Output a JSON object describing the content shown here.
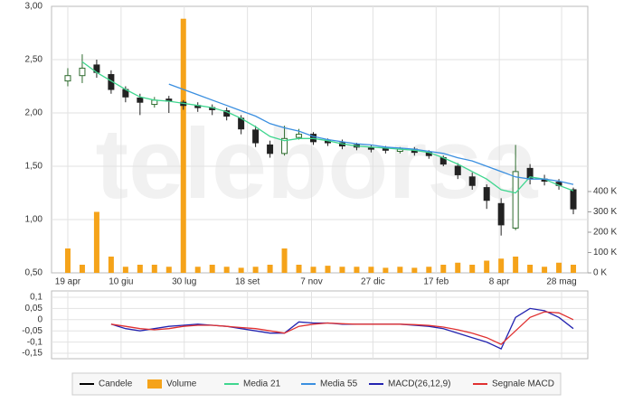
{
  "watermark": "teleborsa",
  "chart_data": [
    {
      "type": "candlestick",
      "x": [
        0,
        8,
        16,
        24,
        32,
        40,
        48,
        56,
        64,
        72,
        80,
        88,
        96,
        104,
        112,
        120,
        128,
        136,
        144,
        152,
        160,
        168,
        176,
        184,
        192,
        200,
        208,
        216,
        224,
        232,
        240,
        248,
        256,
        264,
        272,
        280
      ],
      "xlim": [
        -9,
        288
      ],
      "xticks": [
        {
          "value": 0,
          "label": "19 apr"
        },
        {
          "value": 29.5,
          "label": "10 giu"
        },
        {
          "value": 64.5,
          "label": "30 lug"
        },
        {
          "value": 99.5,
          "label": "18 set"
        },
        {
          "value": 135,
          "label": "7 nov"
        },
        {
          "value": 169,
          "label": "27 dic"
        },
        {
          "value": 204,
          "label": "17 feb"
        },
        {
          "value": 239,
          "label": "8 apr"
        },
        {
          "value": 273.5,
          "label": "28 mag"
        }
      ],
      "ylim": [
        0.5,
        3.0
      ],
      "yticks": [
        {
          "value": 0.5,
          "label": "0,50"
        },
        {
          "value": 1.0,
          "label": "1,00"
        },
        {
          "value": 1.5,
          "label": "1,50"
        },
        {
          "value": 2.0,
          "label": "2,00"
        },
        {
          "value": 2.5,
          "label": "2,50"
        },
        {
          "value": 3.0,
          "label": "3,00"
        }
      ],
      "y2lim": [
        0,
        1311000
      ],
      "y2ticks": [
        {
          "value": 0,
          "label": "0 K"
        },
        {
          "value": 100000,
          "label": "100 K"
        },
        {
          "value": 200000,
          "label": "200 K"
        },
        {
          "value": 300000,
          "label": "300 K"
        },
        {
          "value": 400000,
          "label": "400 K"
        }
      ],
      "grid": true,
      "candles": {
        "name": "Candele",
        "color": "#000000",
        "up_color": "#2e6b2e",
        "down_color": "#222222",
        "open": [
          2.3,
          2.35,
          2.45,
          2.36,
          2.22,
          2.14,
          2.08,
          2.13,
          2.1,
          2.07,
          2.05,
          2.02,
          1.95,
          1.84,
          1.7,
          1.62,
          1.77,
          1.8,
          1.74,
          1.72,
          1.7,
          1.67,
          1.67,
          1.64,
          1.66,
          1.63,
          1.58,
          1.5,
          1.4,
          1.3,
          1.15,
          0.92,
          1.48,
          1.38,
          1.35,
          1.28
        ],
        "high": [
          2.42,
          2.55,
          2.5,
          2.4,
          2.25,
          2.18,
          2.15,
          2.16,
          2.12,
          2.1,
          2.08,
          2.05,
          1.98,
          1.88,
          1.74,
          1.88,
          1.85,
          1.82,
          1.76,
          1.75,
          1.72,
          1.7,
          1.69,
          1.68,
          1.68,
          1.65,
          1.6,
          1.53,
          1.44,
          1.33,
          1.2,
          1.7,
          1.52,
          1.42,
          1.38,
          1.3
        ],
        "low": [
          2.25,
          2.28,
          2.33,
          2.18,
          2.1,
          1.98,
          2.05,
          2.0,
          2.03,
          2.01,
          1.98,
          1.93,
          1.8,
          1.68,
          1.58,
          1.6,
          1.75,
          1.7,
          1.69,
          1.66,
          1.65,
          1.63,
          1.62,
          1.62,
          1.6,
          1.57,
          1.5,
          1.38,
          1.28,
          1.1,
          0.85,
          0.9,
          1.33,
          1.32,
          1.28,
          1.05
        ],
        "close": [
          2.35,
          2.42,
          2.38,
          2.22,
          2.15,
          2.1,
          2.12,
          2.11,
          2.07,
          2.05,
          2.03,
          1.97,
          1.85,
          1.72,
          1.62,
          1.76,
          1.8,
          1.73,
          1.72,
          1.69,
          1.68,
          1.66,
          1.65,
          1.66,
          1.63,
          1.6,
          1.52,
          1.42,
          1.32,
          1.18,
          0.95,
          1.45,
          1.38,
          1.36,
          1.32,
          1.1
        ]
      },
      "series": [
        {
          "name": "Volume",
          "color": "#f5a31a",
          "axis": "y2",
          "values": [
            120000,
            40000,
            300000,
            80000,
            30000,
            40000,
            40000,
            30000,
            1250000,
            30000,
            40000,
            30000,
            25000,
            30000,
            40000,
            120000,
            40000,
            30000,
            35000,
            30000,
            30000,
            30000,
            25000,
            30000,
            25000,
            30000,
            40000,
            50000,
            40000,
            60000,
            70000,
            80000,
            40000,
            30000,
            50000,
            40000
          ]
        },
        {
          "name": "Media 21",
          "color": "#3fd68f",
          "values": [
            null,
            2.48,
            2.38,
            2.3,
            2.22,
            2.15,
            2.12,
            2.11,
            2.09,
            2.07,
            2.05,
            2.01,
            1.95,
            1.87,
            1.78,
            1.74,
            1.76,
            1.76,
            1.74,
            1.71,
            1.69,
            1.68,
            1.67,
            1.66,
            1.65,
            1.63,
            1.58,
            1.52,
            1.45,
            1.38,
            1.28,
            1.25,
            1.4,
            1.38,
            1.32,
            1.27
          ]
        },
        {
          "name": "Media 55",
          "color": "#3a8fe0",
          "values": [
            null,
            null,
            null,
            null,
            null,
            null,
            null,
            2.27,
            2.22,
            2.17,
            2.12,
            2.07,
            2.02,
            1.97,
            1.9,
            1.86,
            1.83,
            1.78,
            1.75,
            1.73,
            1.71,
            1.7,
            1.68,
            1.67,
            1.66,
            1.64,
            1.62,
            1.58,
            1.55,
            1.5,
            1.45,
            1.4,
            1.38,
            1.38,
            1.36,
            1.33
          ]
        }
      ]
    },
    {
      "type": "line",
      "x": [
        0,
        8,
        16,
        24,
        32,
        40,
        48,
        56,
        64,
        72,
        80,
        88,
        96,
        104,
        112,
        120,
        128,
        136,
        144,
        152,
        160,
        168,
        176,
        184,
        192,
        200,
        208,
        216,
        224,
        232,
        240,
        248,
        256,
        264,
        272,
        280
      ],
      "ylim": [
        -0.174,
        0.128
      ],
      "yticks": [
        {
          "value": -0.15,
          "label": "-0,15"
        },
        {
          "value": -0.1,
          "label": "-0,1"
        },
        {
          "value": -0.05,
          "label": "-0,05"
        },
        0,
        {
          "value": 0.05,
          "label": "0,05"
        },
        {
          "value": 0.1,
          "label": "0,1"
        }
      ],
      "series": [
        {
          "name": "MACD(26,12,9)",
          "color": "#2424b0",
          "values": [
            null,
            null,
            null,
            -0.02,
            -0.04,
            -0.05,
            -0.04,
            -0.03,
            -0.025,
            -0.02,
            -0.025,
            -0.03,
            -0.04,
            -0.05,
            -0.06,
            -0.06,
            -0.01,
            -0.015,
            -0.015,
            -0.02,
            -0.02,
            -0.02,
            -0.02,
            -0.02,
            -0.025,
            -0.03,
            -0.04,
            -0.06,
            -0.08,
            -0.1,
            -0.13,
            0.01,
            0.05,
            0.04,
            0.01,
            -0.04
          ]
        },
        {
          "name": "Segnale MACD",
          "color": "#e03030",
          "values": [
            null,
            null,
            null,
            -0.02,
            -0.03,
            -0.04,
            -0.045,
            -0.04,
            -0.03,
            -0.025,
            -0.025,
            -0.03,
            -0.035,
            -0.04,
            -0.05,
            -0.06,
            -0.03,
            -0.02,
            -0.015,
            -0.018,
            -0.02,
            -0.02,
            -0.02,
            -0.02,
            -0.022,
            -0.026,
            -0.033,
            -0.045,
            -0.06,
            -0.08,
            -0.11,
            -0.05,
            0.01,
            0.035,
            0.03,
            0
          ]
        }
      ]
    }
  ]
}
